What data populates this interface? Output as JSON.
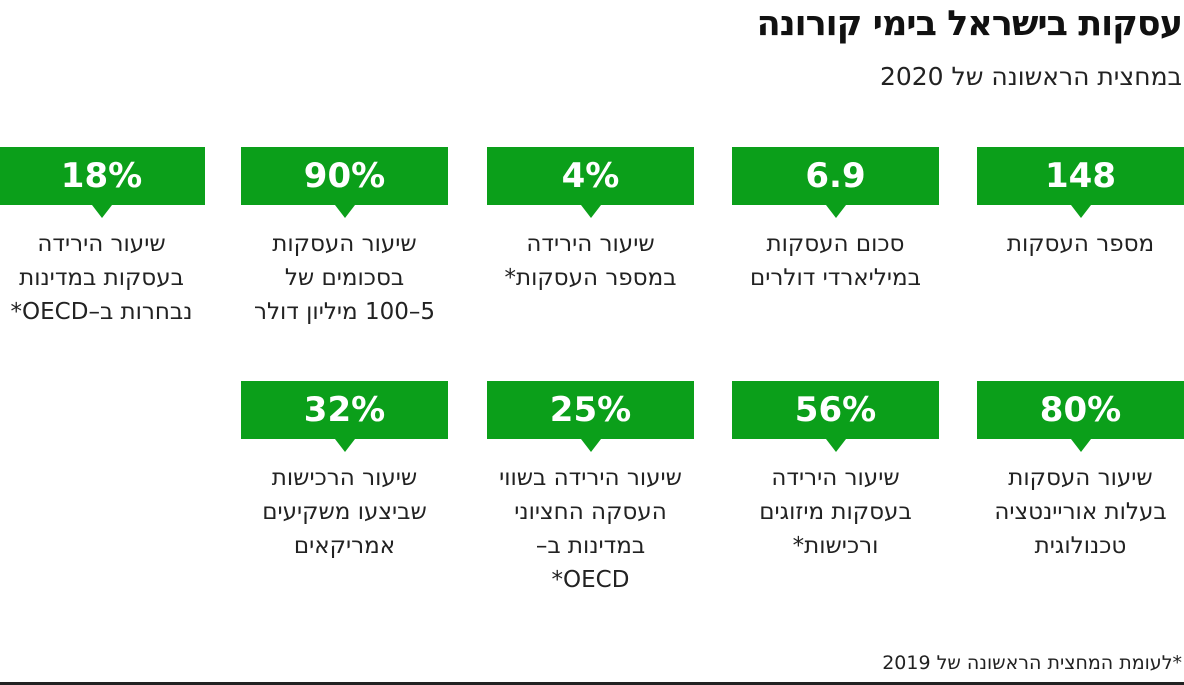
{
  "header": {
    "title": "עסקות בישראל בימי קורונה",
    "subtitle": "במחצית הראשונה של 2020"
  },
  "accent_color": "#0b9f1a",
  "cards": [
    {
      "value": "148",
      "lines": [
        "מספר העסקות"
      ]
    },
    {
      "value": "6.9",
      "lines": [
        "סכום העסקות",
        "במיליארדי דולרים"
      ]
    },
    {
      "value": "4%",
      "lines": [
        "שיעור הירידה",
        "במספר העסקות*"
      ]
    },
    {
      "value": "90%",
      "lines": [
        "שיעור העסקות",
        "בסכומים של",
        "5–100 מיליון דולר"
      ]
    },
    {
      "value": "18%",
      "lines": [
        "שיעור הירידה",
        "בעסקות במדינות",
        "נבחרות ב–OECD*"
      ]
    },
    {
      "value": "80%",
      "lines": [
        "שיעור העסקות",
        "בעלות אוריינטציה",
        "טכנולוגית"
      ]
    },
    {
      "value": "56%",
      "lines": [
        "שיעור הירידה",
        "בעסקות מיזוגים",
        "ורכישות*"
      ]
    },
    {
      "value": "25%",
      "lines": [
        "שיעור הירידה בשווי",
        "העסקה החציוני",
        "במדינות ב–",
        "OECD*"
      ]
    },
    {
      "value": "32%",
      "lines": [
        "שיעור הרכישות",
        "שביצעו משקיעים",
        "אמריקאים"
      ]
    }
  ],
  "footnote": "*לעומת המחצית הראשונה של 2019"
}
